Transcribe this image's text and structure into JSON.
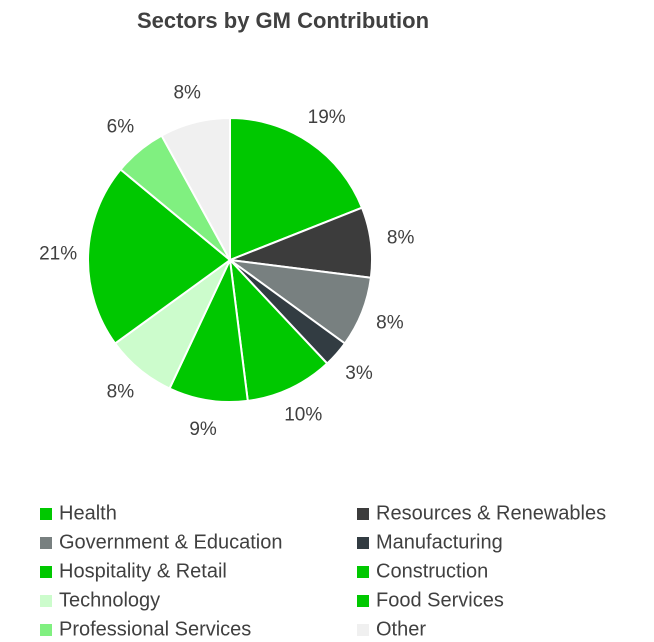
{
  "chart_data": {
    "type": "pie",
    "title": "Sectors by GM Contribution",
    "categories": [
      "Health",
      "Resources & Renewables",
      "Government & Education",
      "Manufacturing",
      "Hospitality & Retail",
      "Construction",
      "Technology",
      "Food Services",
      "Professional Services",
      "Other"
    ],
    "values": [
      19,
      8,
      8,
      3,
      10,
      9,
      8,
      21,
      6,
      8
    ],
    "value_labels": [
      "19%",
      "8%",
      "8%",
      "3%",
      "10%",
      "9%",
      "8%",
      "21%",
      "6%",
      "8%"
    ],
    "colors": [
      "#00c800",
      "#3c3c3c",
      "#788080",
      "#323c42",
      "#00c800",
      "#00c800",
      "#ccfccc",
      "#00c800",
      "#80f080",
      "#f0f0f0"
    ],
    "legend": "bottom"
  }
}
